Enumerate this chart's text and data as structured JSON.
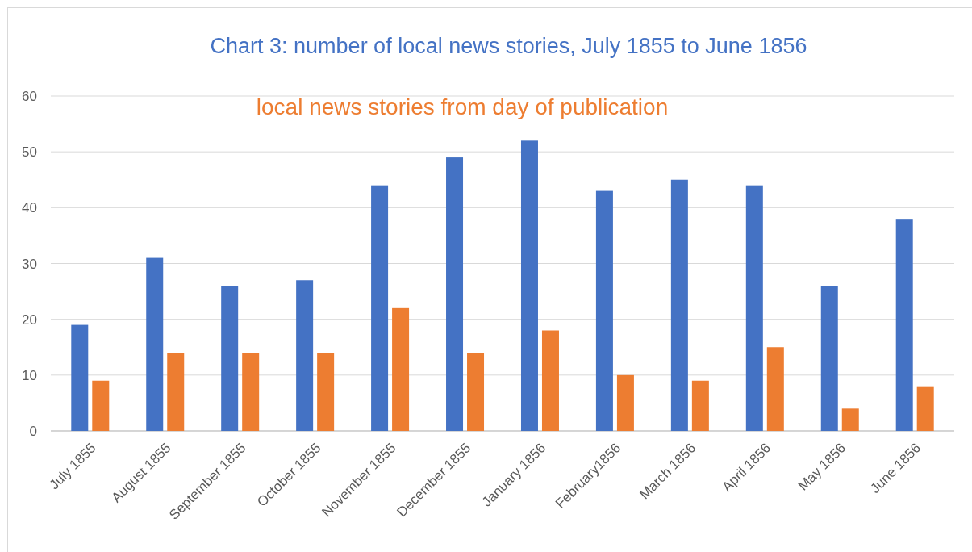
{
  "chart_data": {
    "type": "bar",
    "title": "Chart 3: number of local news stories, July 1855 to June 1856",
    "categories": [
      "July 1855",
      "August 1855",
      "September 1855",
      "October 1855",
      "November 1855",
      "December 1855",
      "January 1856",
      "February1856",
      "March 1856",
      "April 1856",
      "May 1856",
      "June 1856"
    ],
    "series": [
      {
        "color": "#4472c4",
        "values": [
          19,
          31,
          26,
          27,
          44,
          49,
          52,
          43,
          45,
          44,
          26,
          38
        ]
      },
      {
        "name": "local news stories from day of publication",
        "color": "#ed7d31",
        "values": [
          9,
          14,
          14,
          14,
          22,
          14,
          18,
          10,
          9,
          15,
          4,
          8
        ]
      }
    ],
    "ylim": [
      0,
      60
    ],
    "yticks": [
      0,
      10,
      20,
      30,
      40,
      50,
      60
    ],
    "grid": "y",
    "legend": "top"
  }
}
